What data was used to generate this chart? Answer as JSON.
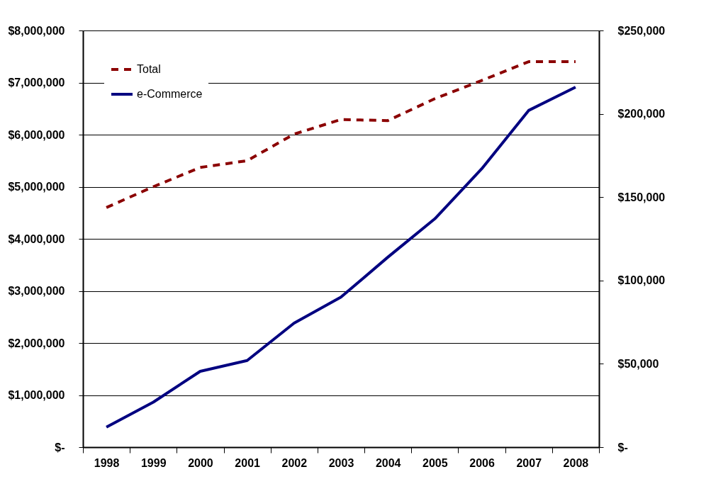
{
  "chart_data": {
    "type": "line",
    "categories": [
      "1998",
      "1999",
      "2000",
      "2001",
      "2002",
      "2003",
      "2004",
      "2005",
      "2006",
      "2007",
      "2008"
    ],
    "series": [
      {
        "name": "Total",
        "color": "#8b0000",
        "line_style": "dashed",
        "values": [
          4600000,
          5000000,
          5370000,
          5500000,
          6010000,
          6290000,
          6270000,
          6690000,
          7040000,
          7400000,
          7400000
        ]
      },
      {
        "name": "e-Commerce",
        "color": "#000080",
        "line_style": "solid",
        "axis": "y2",
        "values": [
          12000,
          27000,
          45500,
          52000,
          74400,
          90000,
          114000,
          137000,
          167000,
          202000,
          216000
        ]
      }
    ],
    "ylim": [
      0,
      8000000
    ],
    "yticks": [
      {
        "value": 0,
        "label": "$-"
      },
      {
        "value": 1000000,
        "label": "$1,000,000"
      },
      {
        "value": 2000000,
        "label": "$2,000,000"
      },
      {
        "value": 3000000,
        "label": "$3,000,000"
      },
      {
        "value": 4000000,
        "label": "$4,000,000"
      },
      {
        "value": 5000000,
        "label": "$5,000,000"
      },
      {
        "value": 6000000,
        "label": "$6,000,000"
      },
      {
        "value": 7000000,
        "label": "$7,000,000"
      },
      {
        "value": 8000000,
        "label": "$8,000,000"
      }
    ],
    "y2lim": [
      0,
      250000
    ],
    "y2ticks": [
      {
        "value": 0,
        "label": "$-"
      },
      {
        "value": 50000,
        "label": "$50,000"
      },
      {
        "value": 100000,
        "label": "$100,000"
      },
      {
        "value": 150000,
        "label": "$150,000"
      },
      {
        "value": 200000,
        "label": "$200,000"
      },
      {
        "value": 250000,
        "label": "$250,000"
      }
    ],
    "grid": "y",
    "legend": "top left"
  }
}
